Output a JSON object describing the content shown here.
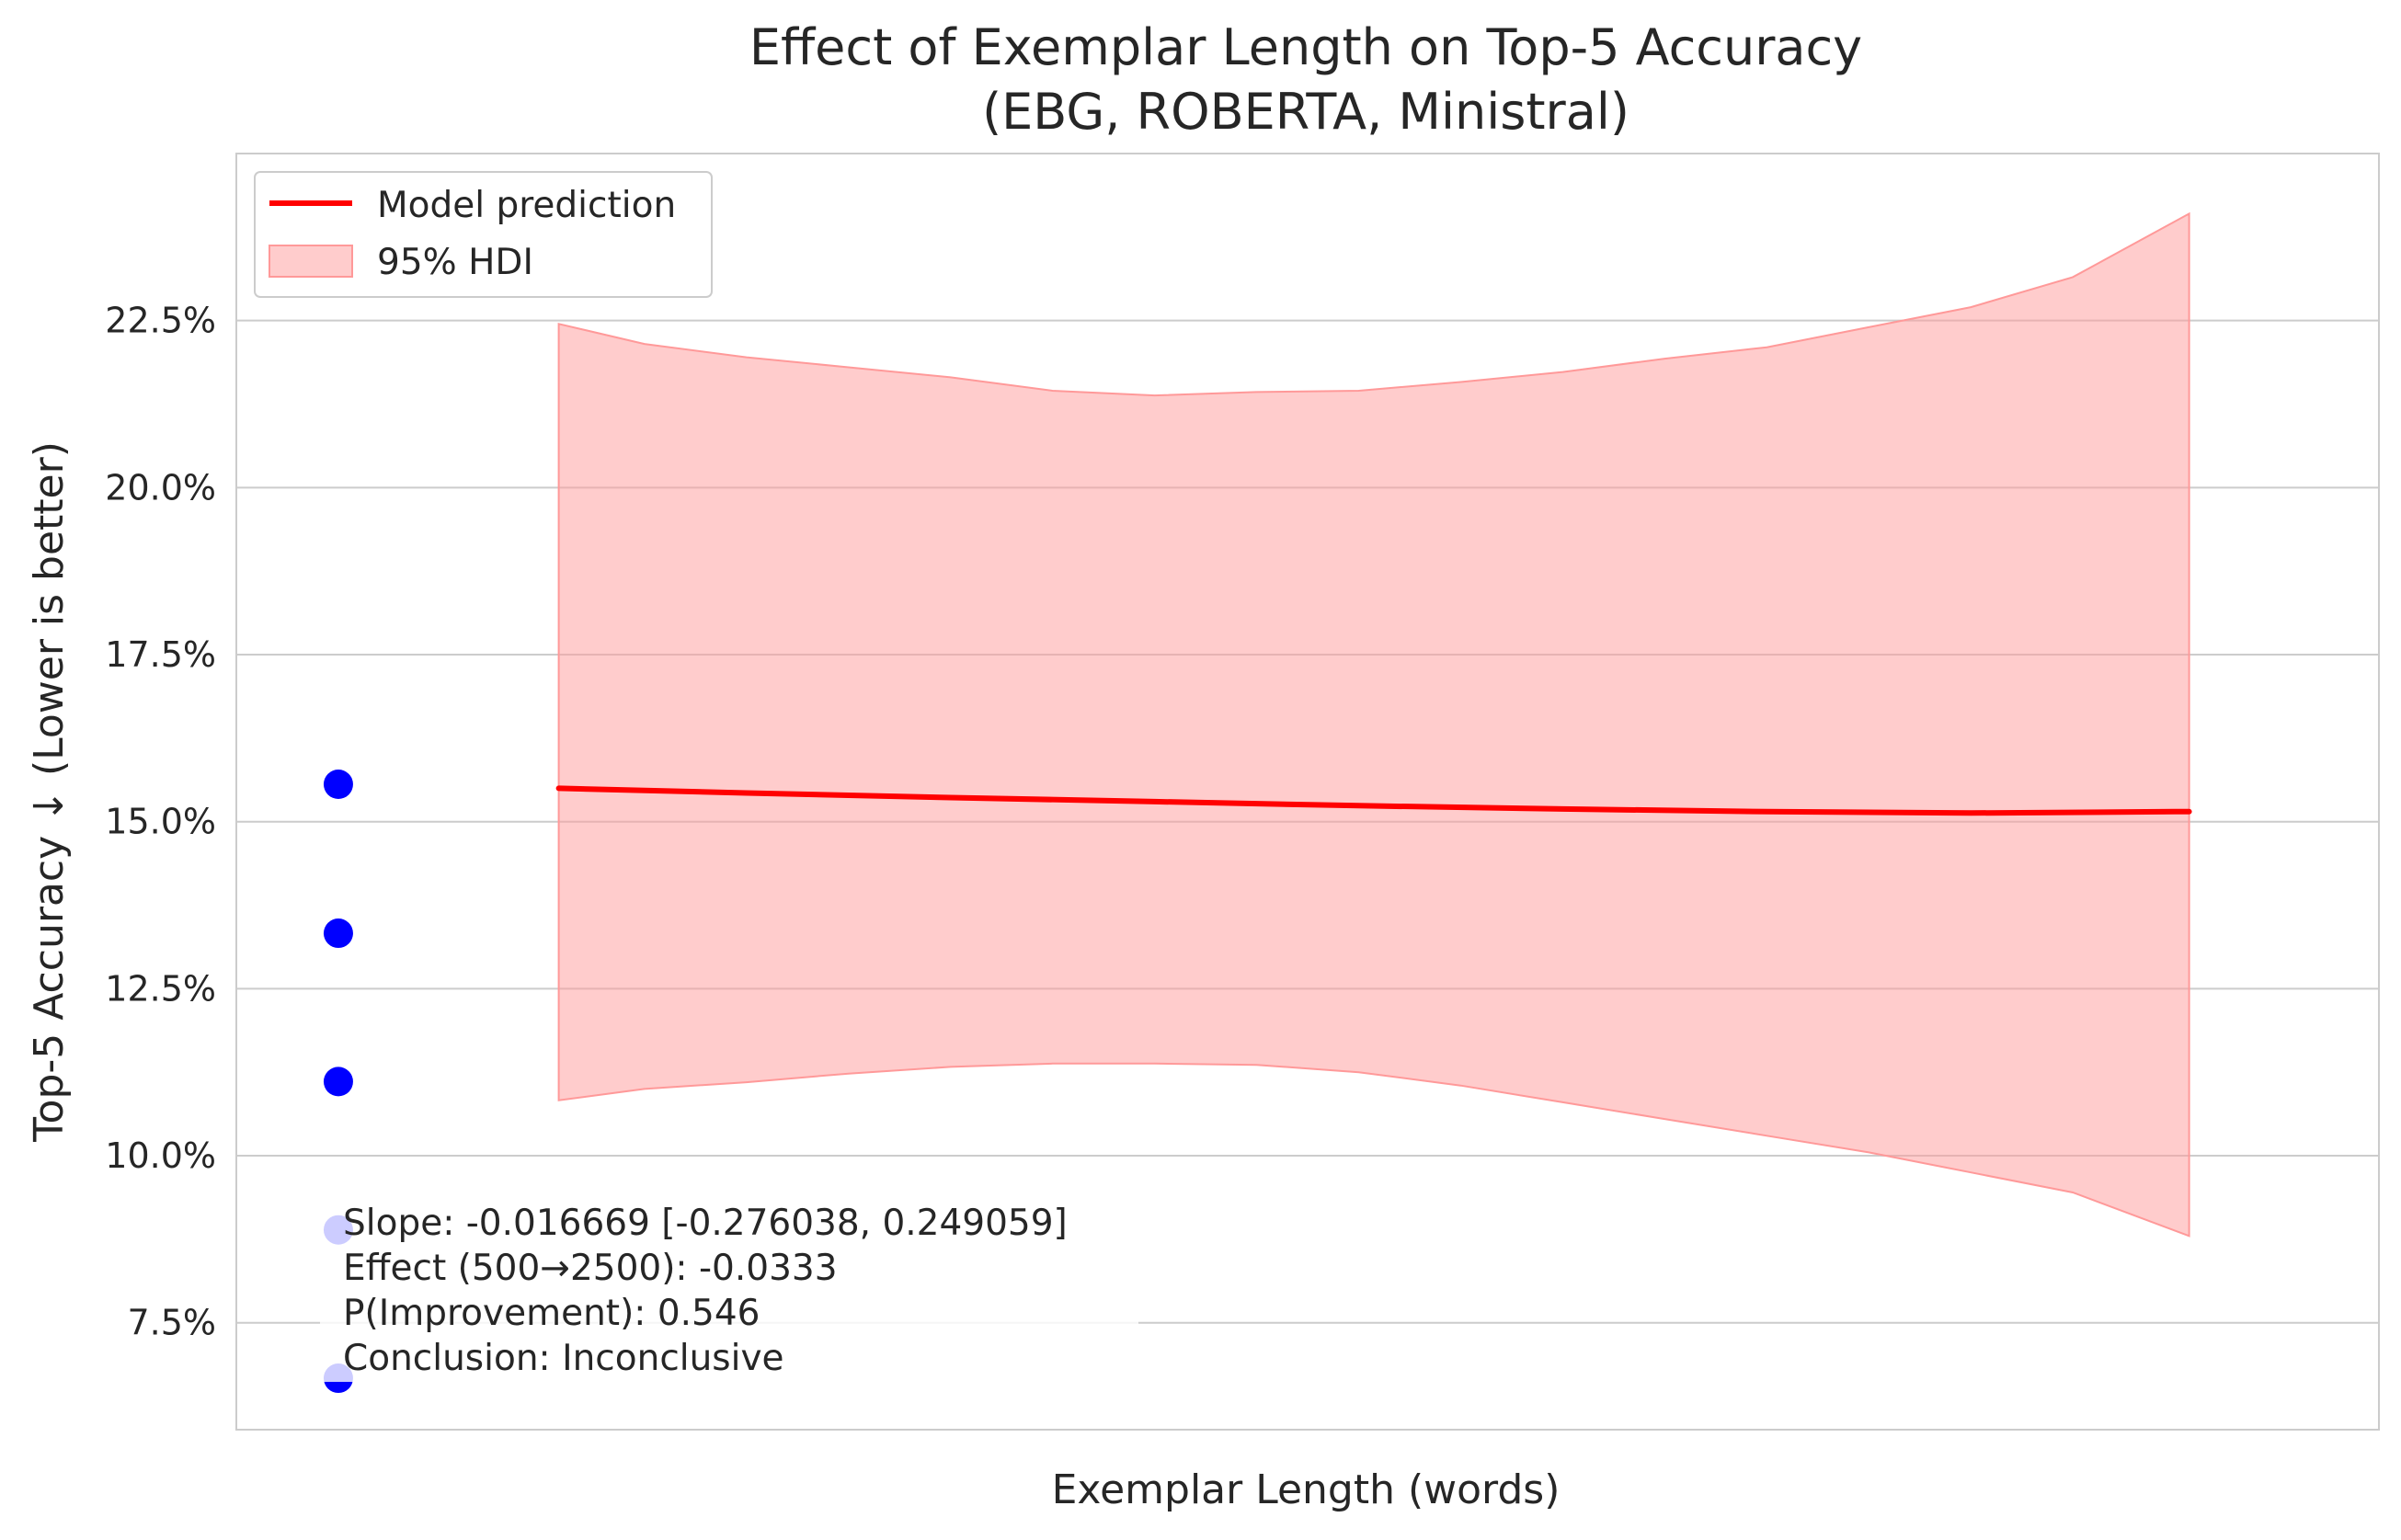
{
  "chart_data": {
    "type": "line",
    "title": "Effect of Exemplar Length on Top-5 Accuracy",
    "subtitle": "(EBG, ROBERTA, Ministral)",
    "xlabel": "Exemplar Length (words)",
    "ylabel": "Top-5 Accuracy ↓ (Lower is better)",
    "ylim": [
      0.059,
      0.25
    ],
    "y_ticks": [
      0.075,
      0.1,
      0.125,
      0.15,
      0.175,
      0.2,
      0.225
    ],
    "y_tick_labels": [
      "7.5%",
      "10.0%",
      "12.5%",
      "15.0%",
      "17.5%",
      "20.0%",
      "22.5%"
    ],
    "xlim": [
      -0.1,
      2.0
    ],
    "grid": true,
    "legend_position": "top-left",
    "legend": [
      {
        "label": "Model prediction",
        "kind": "line",
        "color": "#ff0000"
      },
      {
        "label": "95% HDI",
        "kind": "band",
        "color": "#ff9999"
      }
    ],
    "series": [
      {
        "name": "Model prediction",
        "type": "line",
        "color": "#ff0000",
        "x": [
          0.216,
          0.4,
          0.6,
          0.8,
          1.0,
          1.2,
          1.4,
          1.6,
          1.8,
          1.814
        ],
        "y": [
          0.155,
          0.1543,
          0.1536,
          0.153,
          0.1524,
          0.1519,
          0.1515,
          0.1513,
          0.1515,
          0.1515
        ]
      },
      {
        "name": "95% HDI",
        "type": "band",
        "color": "#ff9999",
        "x": [
          0.216,
          0.3,
          0.4,
          0.5,
          0.6,
          0.7,
          0.8,
          0.9,
          1.0,
          1.1,
          1.2,
          1.3,
          1.4,
          1.5,
          1.6,
          1.7,
          1.814
        ],
        "y_low": [
          0.1083,
          0.11,
          0.111,
          0.1123,
          0.1133,
          0.1138,
          0.1138,
          0.1136,
          0.1125,
          0.1105,
          0.108,
          0.1055,
          0.103,
          0.1005,
          0.0975,
          0.0945,
          0.088
        ],
        "y_high": [
          0.2245,
          0.2215,
          0.2195,
          0.218,
          0.2165,
          0.2145,
          0.2138,
          0.2143,
          0.2145,
          0.2158,
          0.2173,
          0.2193,
          0.221,
          0.224,
          0.227,
          0.2315,
          0.241
        ]
      },
      {
        "name": "",
        "type": "scatter",
        "color": "#0000ff",
        "x": [
          0,
          0,
          0,
          0,
          0
        ],
        "y": [
          0.1556,
          0.1333,
          0.1111,
          0.0889,
          0.0667
        ]
      }
    ],
    "annotation": {
      "lines": [
        "Slope: -0.016669 [-0.276038, 0.249059]",
        "Effect (500→2500): -0.0333",
        "P(Improvement): 0.546",
        "Conclusion: Inconclusive"
      ],
      "box_color": "#ffffff",
      "box_opacity": 0.8
    }
  }
}
